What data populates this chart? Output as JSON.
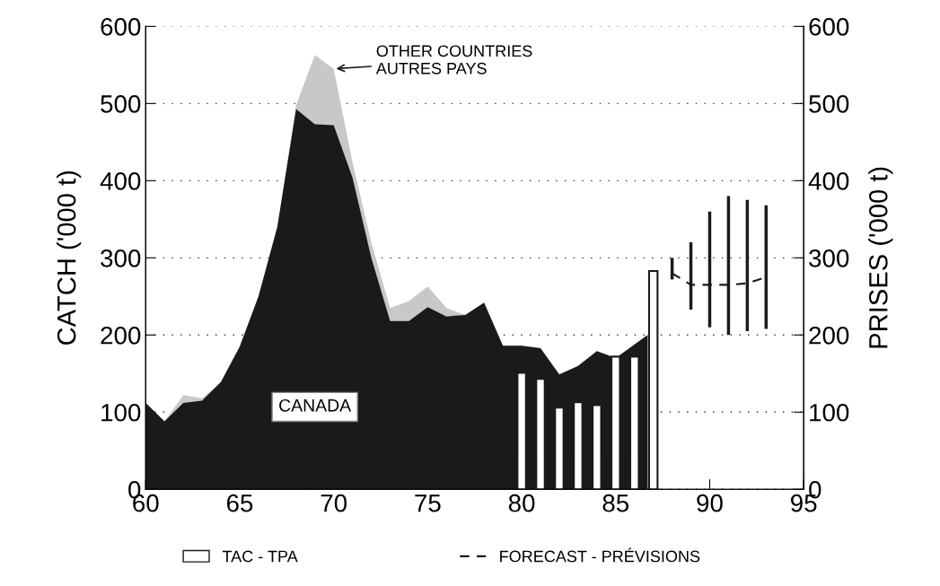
{
  "chart_data": {
    "type": "area",
    "ylabel": "CATCH ('000 t)",
    "y2label": "PRISES ('000 t)",
    "xlim": [
      60,
      95
    ],
    "xticks": [
      60,
      65,
      70,
      75,
      80,
      85,
      90,
      95
    ],
    "ylim": [
      0,
      600
    ],
    "yticks": [
      0,
      100,
      200,
      300,
      400,
      500,
      600
    ],
    "y2lim": [
      0,
      600
    ],
    "y2ticks": [
      0,
      100,
      200,
      300,
      400,
      500,
      600
    ],
    "grid": "y",
    "legend": "bottom",
    "series": [
      {
        "color": "#c8c8c8",
        "x": [
          60,
          61,
          62,
          63,
          64,
          65,
          66,
          67,
          68,
          69,
          70,
          71,
          72,
          73,
          74,
          75,
          76,
          77,
          78,
          79,
          80,
          81,
          82,
          83,
          84,
          85,
          86.7
        ],
        "values": [
          112,
          88,
          122,
          118,
          139,
          185,
          250,
          340,
          498,
          563,
          545,
          424,
          320,
          235,
          244,
          263,
          235,
          226,
          242,
          186,
          186,
          183,
          149,
          160,
          179,
          170,
          200
        ]
      },
      {
        "color": "#1a1a1a",
        "x": [
          60,
          61,
          62,
          63,
          64,
          65,
          66,
          67,
          68,
          69,
          70,
          71,
          72,
          73,
          74,
          75,
          76,
          77,
          78,
          79,
          80,
          81,
          82,
          83,
          84,
          85,
          86.7
        ],
        "values": [
          112,
          88,
          112,
          115,
          139,
          185,
          250,
          340,
          493,
          473,
          472,
          404,
          300,
          218,
          218,
          236,
          224,
          226,
          242,
          186,
          186,
          183,
          149,
          160,
          179,
          170,
          200
        ]
      },
      {
        "type": "bar",
        "name": "TAC - TPA",
        "color": "#ffffff",
        "x": [
          80,
          81,
          82,
          83,
          84,
          85,
          86,
          87
        ],
        "values": [
          151,
          143,
          106,
          113,
          109,
          172,
          172,
          283
        ]
      },
      {
        "type": "line",
        "name": "FORECAST - PRÉVISIONS",
        "color": "#1a1a1a",
        "line_style": "dashed",
        "x": [
          88,
          89,
          90,
          91,
          92,
          93
        ],
        "values": [
          280,
          265,
          265,
          265,
          267,
          275
        ],
        "errors": [
          [
            272,
            300
          ],
          [
            233,
            320
          ],
          [
            210,
            360
          ],
          [
            200,
            380
          ],
          [
            205,
            375
          ],
          [
            208,
            368
          ]
        ]
      }
    ],
    "annotations": [
      "CANADA",
      {
        "text": "OTHER COUNTRIES\nAUTRES PAYS",
        "x": 70,
        "y": 545
      }
    ]
  }
}
